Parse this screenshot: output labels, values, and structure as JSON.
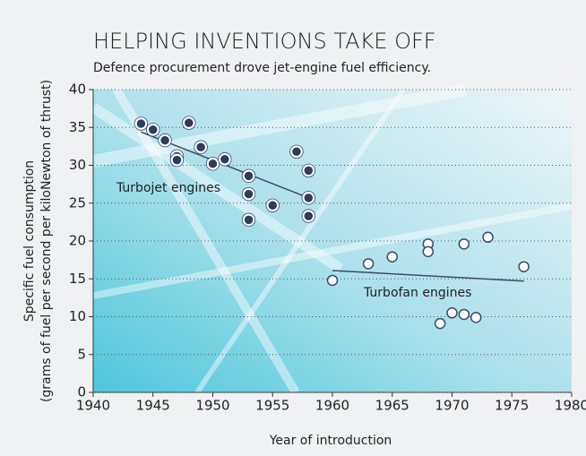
{
  "chart_data": {
    "type": "scatter",
    "title": "HELPING INVENTIONS TAKE OFF",
    "subtitle": "Defence procurement drove jet-engine fuel efficiency.",
    "x_label": "Year of introduction",
    "y_label": [
      "Specific fuel consumption",
      "(grams of fuel per second per kiloNewton of thrust)"
    ],
    "annotations": [
      "Turbojet engines",
      "Turbofan engines"
    ],
    "xlim": [
      1940,
      1980
    ],
    "xticks": [
      1940,
      1945,
      1950,
      1955,
      1960,
      1965,
      1970,
      1975,
      1980
    ],
    "ylim": [
      0,
      40
    ],
    "yticks": [
      0,
      5,
      10,
      15,
      20,
      25,
      30,
      35,
      40
    ],
    "grid": true,
    "series": [
      {
        "name": "Turbojet engines",
        "color": "#2f3d5c",
        "x": [
          1944,
          1945,
          1946,
          1947,
          1947,
          1948,
          1949,
          1950,
          1951,
          1953,
          1953,
          1953,
          1955,
          1957,
          1958,
          1958,
          1958
        ],
        "values": [
          35.5,
          34.7,
          33.3,
          31.2,
          30.7,
          35.6,
          32.4,
          30.2,
          30.8,
          28.6,
          26.2,
          22.8,
          24.7,
          31.8,
          29.3,
          25.7,
          23.3
        ],
        "trend": {
          "x": [
            1944,
            1958
          ],
          "values": [
            34.4,
            25.7
          ]
        }
      },
      {
        "name": "Turbofan engines",
        "color": "#ffffff",
        "x": [
          1960,
          1963,
          1965,
          1968,
          1968,
          1969,
          1970,
          1971,
          1971,
          1972,
          1973,
          1976
        ],
        "values": [
          14.8,
          17.0,
          17.9,
          19.6,
          18.6,
          9.1,
          10.5,
          10.3,
          19.6,
          9.9,
          20.5,
          16.6
        ],
        "trend": {
          "x": [
            1960,
            1976
          ],
          "values": [
            16.1,
            14.7
          ]
        }
      }
    ]
  }
}
